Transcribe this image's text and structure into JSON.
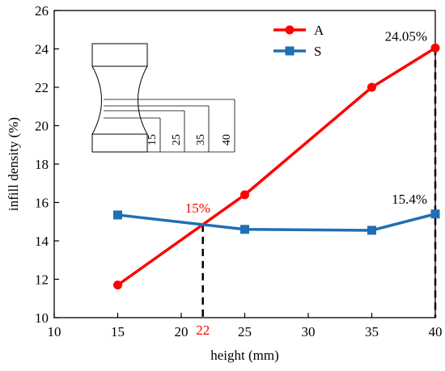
{
  "chart_data": {
    "type": "line",
    "xlabel": "height (mm)",
    "ylabel": "infill density (%)",
    "xlim": [
      10,
      40
    ],
    "ylim": [
      10,
      26
    ],
    "xticks": [
      10,
      15,
      20,
      25,
      30,
      35,
      40
    ],
    "yticks": [
      10,
      12,
      14,
      16,
      18,
      20,
      22,
      24,
      26
    ],
    "x": [
      15,
      25,
      35,
      40
    ],
    "series": [
      {
        "name": "A",
        "color": "#ff0000",
        "marker": "circle",
        "values": [
          11.7,
          16.4,
          22.0,
          24.05
        ]
      },
      {
        "name": "S",
        "color": "#1f6fb2",
        "marker": "square",
        "values": [
          15.35,
          14.6,
          14.55,
          15.4
        ]
      }
    ],
    "grid": false,
    "legend_position": "top-right",
    "annotations": [
      {
        "text": "15%",
        "color": "#ff0000",
        "x": 21.7,
        "y": 14.85
      },
      {
        "text": "22",
        "color": "#ff0000",
        "x": 21.7,
        "y": 10
      },
      {
        "text": "24.05%",
        "color": "#000000",
        "x": 40,
        "y": 24.05
      },
      {
        "text": "15.4%",
        "color": "#000000",
        "x": 40,
        "y": 15.4
      }
    ],
    "inset": {
      "description": "specimen sketch",
      "labels": [
        "15",
        "25",
        "35",
        "40"
      ]
    }
  }
}
